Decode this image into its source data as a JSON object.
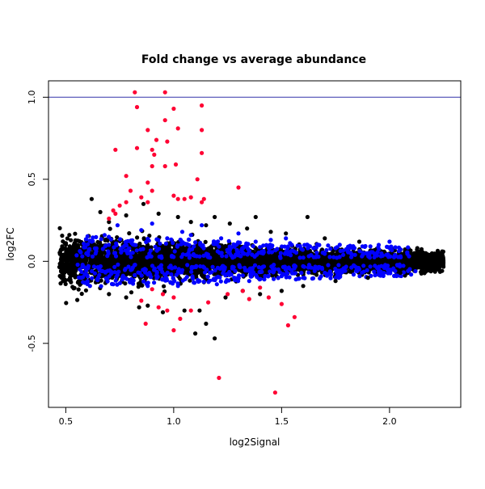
{
  "chart_data": {
    "type": "scatter",
    "title": "Fold change vs average abundance",
    "xlabel": "log2Signal",
    "ylabel": "log2FC",
    "xlim": [
      0.42,
      2.33
    ],
    "ylim": [
      -0.89,
      1.1
    ],
    "xticks": [
      0.5,
      1.0,
      1.5,
      2.0
    ],
    "xtick_labels": [
      "0.5",
      "1.0",
      "1.5",
      "2.0"
    ],
    "yticks": [
      -0.5,
      0.0,
      0.5,
      1.0
    ],
    "ytick_labels": [
      "-0.5",
      "0.0",
      "0.5",
      "1.0"
    ],
    "grid": false,
    "reference_lines": [
      {
        "axis": "y",
        "value": 1.0,
        "color": "#3333aa"
      }
    ],
    "series": [
      {
        "color": "#000000",
        "note_cloud": "dense band of several thousand points from x≈0.47 to x≈2.25, spread roughly ±0.08 around y=0, wider at low x",
        "points": [
          [
            0.62,
            0.38
          ],
          [
            0.66,
            0.3
          ],
          [
            0.7,
            0.24
          ],
          [
            0.78,
            0.28
          ],
          [
            0.86,
            0.35
          ],
          [
            0.93,
            0.29
          ],
          [
            1.02,
            0.27
          ],
          [
            1.08,
            0.24
          ],
          [
            1.15,
            0.22
          ],
          [
            1.19,
            0.27
          ],
          [
            1.26,
            0.23
          ],
          [
            1.34,
            0.2
          ],
          [
            1.38,
            0.27
          ],
          [
            1.45,
            0.18
          ],
          [
            1.52,
            0.17
          ],
          [
            1.62,
            0.27
          ],
          [
            1.7,
            0.14
          ],
          [
            1.86,
            0.12
          ],
          [
            0.7,
            -0.2
          ],
          [
            0.78,
            -0.22
          ],
          [
            0.84,
            -0.28
          ],
          [
            0.88,
            -0.27
          ],
          [
            0.95,
            -0.31
          ],
          [
            1.05,
            -0.3
          ],
          [
            1.12,
            -0.3
          ],
          [
            1.19,
            -0.47
          ],
          [
            1.15,
            -0.38
          ],
          [
            1.1,
            -0.44
          ],
          [
            1.24,
            -0.22
          ],
          [
            1.32,
            -0.18
          ],
          [
            1.4,
            -0.2
          ],
          [
            1.5,
            -0.18
          ],
          [
            1.6,
            -0.15
          ],
          [
            1.75,
            -0.12
          ],
          [
            1.9,
            -0.1
          ],
          [
            2.05,
            -0.07
          ],
          [
            2.15,
            -0.05
          ],
          [
            2.22,
            0.0
          ],
          [
            2.25,
            -0.01
          ]
        ]
      },
      {
        "color": "#0000ff",
        "note_cloud": "scattered points within the central band, x≈0.55 to 2.15",
        "points": [
          [
            0.62,
            0.12
          ],
          [
            0.68,
            0.16
          ],
          [
            0.74,
            0.22
          ],
          [
            0.78,
            0.12
          ],
          [
            0.85,
            0.19
          ],
          [
            0.9,
            0.23
          ],
          [
            0.97,
            0.14
          ],
          [
            1.04,
            0.18
          ],
          [
            1.08,
            0.16
          ],
          [
            1.13,
            0.22
          ],
          [
            1.22,
            0.14
          ],
          [
            1.3,
            0.17
          ],
          [
            1.38,
            0.12
          ],
          [
            1.45,
            0.13
          ],
          [
            1.52,
            0.14
          ],
          [
            1.62,
            0.1
          ],
          [
            1.75,
            0.08
          ],
          [
            1.95,
            0.1
          ],
          [
            2.0,
            0.12
          ],
          [
            0.65,
            -0.1
          ],
          [
            0.72,
            -0.14
          ],
          [
            0.8,
            -0.12
          ],
          [
            0.88,
            -0.15
          ],
          [
            0.95,
            -0.11
          ],
          [
            1.02,
            -0.15
          ],
          [
            1.12,
            -0.12
          ],
          [
            1.2,
            -0.14
          ],
          [
            1.28,
            -0.1
          ],
          [
            1.35,
            -0.12
          ],
          [
            1.42,
            -0.11
          ],
          [
            1.5,
            -0.09
          ],
          [
            1.6,
            -0.1
          ],
          [
            1.7,
            -0.07
          ],
          [
            1.85,
            -0.06
          ],
          [
            2.0,
            -0.05
          ],
          [
            2.1,
            -0.08
          ],
          [
            2.12,
            -0.06
          ]
        ]
      },
      {
        "color": "#ff0033",
        "points": [
          [
            0.82,
            1.03
          ],
          [
            0.96,
            1.03
          ],
          [
            0.83,
            0.94
          ],
          [
            1.0,
            0.93
          ],
          [
            1.13,
            0.95
          ],
          [
            0.96,
            0.86
          ],
          [
            1.02,
            0.81
          ],
          [
            1.13,
            0.8
          ],
          [
            0.88,
            0.8
          ],
          [
            0.92,
            0.74
          ],
          [
            0.97,
            0.73
          ],
          [
            1.13,
            0.66
          ],
          [
            0.73,
            0.68
          ],
          [
            0.83,
            0.69
          ],
          [
            0.9,
            0.68
          ],
          [
            0.91,
            0.65
          ],
          [
            0.9,
            0.58
          ],
          [
            0.96,
            0.58
          ],
          [
            1.01,
            0.59
          ],
          [
            0.78,
            0.52
          ],
          [
            0.88,
            0.48
          ],
          [
            0.9,
            0.43
          ],
          [
            1.11,
            0.5
          ],
          [
            0.8,
            0.43
          ],
          [
            0.85,
            0.39
          ],
          [
            0.88,
            0.36
          ],
          [
            1.0,
            0.4
          ],
          [
            1.02,
            0.38
          ],
          [
            1.05,
            0.38
          ],
          [
            1.08,
            0.39
          ],
          [
            1.14,
            0.38
          ],
          [
            1.3,
            0.45
          ],
          [
            0.75,
            0.34
          ],
          [
            0.78,
            0.36
          ],
          [
            0.72,
            0.31
          ],
          [
            0.73,
            0.29
          ],
          [
            0.7,
            0.26
          ],
          [
            1.13,
            0.36
          ],
          [
            0.9,
            -0.17
          ],
          [
            0.95,
            -0.2
          ],
          [
            1.0,
            -0.22
          ],
          [
            0.85,
            -0.24
          ],
          [
            0.93,
            -0.28
          ],
          [
            0.97,
            -0.3
          ],
          [
            1.03,
            -0.35
          ],
          [
            1.0,
            -0.42
          ],
          [
            0.87,
            -0.38
          ],
          [
            1.08,
            -0.3
          ],
          [
            1.16,
            -0.25
          ],
          [
            1.25,
            -0.2
          ],
          [
            1.4,
            -0.16
          ],
          [
            1.44,
            -0.22
          ],
          [
            1.5,
            -0.26
          ],
          [
            1.53,
            -0.39
          ],
          [
            1.56,
            -0.34
          ],
          [
            1.47,
            -0.8
          ],
          [
            1.21,
            -0.71
          ],
          [
            1.32,
            -0.18
          ],
          [
            1.35,
            -0.23
          ]
        ]
      }
    ]
  }
}
